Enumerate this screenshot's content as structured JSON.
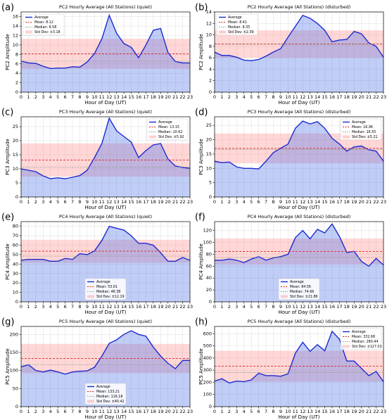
{
  "chart_data": [
    {
      "type": "line",
      "panel_label": "(a)",
      "title": "PC2 Hourly Average (All Stations) (quiet)",
      "xlabel": "Hour of Day (UT)",
      "ylabel": "PC2 Amplitude",
      "x": [
        0,
        1,
        2,
        3,
        4,
        5,
        6,
        7,
        8,
        9,
        10,
        11,
        12,
        13,
        14,
        15,
        16,
        17,
        18,
        19,
        20,
        21,
        22,
        23
      ],
      "xlim": [
        0,
        23
      ],
      "xticks": [
        0,
        1,
        2,
        3,
        4,
        5,
        6,
        7,
        8,
        9,
        10,
        11,
        12,
        13,
        14,
        15,
        16,
        17,
        18,
        19,
        20,
        21,
        22,
        23
      ],
      "ylim": [
        0,
        17
      ],
      "yticks": [
        0,
        2,
        4,
        6,
        8,
        10,
        12,
        14,
        16
      ],
      "series": [
        {
          "name": "Average",
          "color": "#1a2bd1",
          "values": [
            6.6,
            6.2,
            6.1,
            5.5,
            5.0,
            5.1,
            5.1,
            5.4,
            5.3,
            6.4,
            8.2,
            11.3,
            16.3,
            12.5,
            10.3,
            9.5,
            7.3,
            10.0,
            13.1,
            13.5,
            8.4,
            6.5,
            6.2,
            6.2
          ]
        }
      ],
      "mean": {
        "label": "Mean: 8.12",
        "value": 8.12,
        "color": "#d62728"
      },
      "median": {
        "label": "Median: 6.58",
        "value": 6.58,
        "color": "#8a9a8a"
      },
      "std_dev": {
        "label": "Std Dev: ±3.18",
        "value": 3.18,
        "color": "#ff8c8c"
      },
      "legend": "upper left",
      "grid": true
    },
    {
      "type": "line",
      "panel_label": "(b)",
      "title": "PC2 Hourly Average (All Stations) (disturbed)",
      "xlabel": "Hour of Day (UT)",
      "ylabel": "PC2 Amplitude",
      "x": [
        0,
        1,
        2,
        3,
        4,
        5,
        6,
        7,
        8,
        9,
        10,
        11,
        12,
        13,
        14,
        15,
        16,
        17,
        18,
        19,
        20,
        21,
        22,
        23
      ],
      "xlim": [
        0,
        23
      ],
      "xticks": [
        0,
        1,
        2,
        3,
        4,
        5,
        6,
        7,
        8,
        9,
        10,
        11,
        12,
        13,
        14,
        15,
        16,
        17,
        18,
        19,
        20,
        21,
        22,
        23
      ],
      "ylim": [
        0,
        14
      ],
      "yticks": [
        0,
        2,
        4,
        6,
        8,
        10,
        12,
        14
      ],
      "series": [
        {
          "name": "Average",
          "color": "#1a2bd1",
          "values": [
            7.0,
            6.4,
            6.4,
            6.1,
            5.6,
            5.5,
            5.7,
            6.3,
            7.0,
            7.6,
            9.6,
            11.5,
            13.4,
            12.9,
            12.0,
            10.8,
            8.8,
            9.1,
            9.2,
            10.6,
            10.2,
            8.6,
            8.0,
            6.1
          ]
        }
      ],
      "mean": {
        "label": "Mean: 8.41",
        "value": 8.41,
        "color": "#d62728"
      },
      "median": {
        "label": "Median: 8.35",
        "value": 8.35,
        "color": "#8a9a8a"
      },
      "std_dev": {
        "label": "Std Dev: ±2.39",
        "value": 2.39,
        "color": "#ff8c8c"
      },
      "legend": "upper left",
      "grid": true
    },
    {
      "type": "line",
      "panel_label": "(c)",
      "title": "PC3 Hourly Average (All Stations) (quiet)",
      "xlabel": "Hour of Day (UT)",
      "ylabel": "PC3 Amplitude",
      "x": [
        0,
        1,
        2,
        3,
        4,
        5,
        6,
        7,
        8,
        9,
        10,
        11,
        12,
        13,
        14,
        15,
        16,
        17,
        18,
        19,
        20,
        21,
        22,
        23
      ],
      "xlim": [
        0,
        23
      ],
      "xticks": [
        0,
        1,
        2,
        3,
        4,
        5,
        6,
        7,
        8,
        9,
        10,
        11,
        12,
        13,
        14,
        15,
        16,
        17,
        18,
        19,
        20,
        21,
        22,
        23
      ],
      "ylim": [
        0,
        28.5
      ],
      "yticks": [
        0,
        5,
        10,
        15,
        20,
        25
      ],
      "series": [
        {
          "name": "Average",
          "color": "#1a2bd1",
          "values": [
            10.0,
            9.5,
            9.0,
            7.5,
            6.5,
            6.8,
            6.5,
            7.0,
            7.6,
            9.5,
            14.0,
            19.0,
            28.0,
            23.5,
            21.5,
            19.5,
            14.0,
            16.5,
            18.5,
            19.0,
            13.5,
            11.0,
            10.5,
            10.2
          ]
        }
      ],
      "mean": {
        "label": "Mean: 13.15",
        "value": 13.15,
        "color": "#d62728"
      },
      "median": {
        "label": "Median: 10.62",
        "value": 10.62,
        "color": "#8a9a8a"
      },
      "std_dev": {
        "label": "Std Dev: ±5.92",
        "value": 5.92,
        "color": "#ff8c8c"
      },
      "legend": "upper right",
      "grid": true
    },
    {
      "type": "line",
      "panel_label": "(d)",
      "title": "PC3 Hourly Average (All Stations) (disturbed)",
      "xlabel": "Hour of Day (UT)",
      "ylabel": "PC3 Amplitude",
      "x": [
        0,
        1,
        2,
        3,
        4,
        5,
        6,
        7,
        8,
        9,
        10,
        11,
        12,
        13,
        14,
        15,
        16,
        17,
        18,
        19,
        20,
        21,
        22,
        23
      ],
      "xlim": [
        0,
        23
      ],
      "xticks": [
        0,
        1,
        2,
        3,
        4,
        5,
        6,
        7,
        8,
        9,
        10,
        11,
        12,
        13,
        14,
        15,
        16,
        17,
        18,
        19,
        20,
        21,
        22,
        23
      ],
      "ylim": [
        0,
        28
      ],
      "yticks": [
        0,
        5,
        10,
        15,
        20,
        25
      ],
      "series": [
        {
          "name": "Average",
          "color": "#1a2bd1",
          "values": [
            12.5,
            12.0,
            12.2,
            10.5,
            10.0,
            10.0,
            9.8,
            12.5,
            15.5,
            17.0,
            18.5,
            24.0,
            26.5,
            25.5,
            26.3,
            24.0,
            20.5,
            18.5,
            16.0,
            17.5,
            17.8,
            16.5,
            16.0,
            12.5
          ]
        }
      ],
      "mean": {
        "label": "Mean: 16.96",
        "value": 16.96,
        "color": "#d62728"
      },
      "median": {
        "label": "Median: 16.55",
        "value": 16.55,
        "color": "#8a9a8a"
      },
      "std_dev": {
        "label": "Std Dev: ±5.21",
        "value": 5.21,
        "color": "#ff8c8c"
      },
      "legend": "upper right",
      "grid": true
    },
    {
      "type": "line",
      "panel_label": "(e)",
      "title": "PC4 Hourly Average (All Stations) (quiet)",
      "xlabel": "Hour of Day (UT)",
      "ylabel": "PC4 Amplitude",
      "x": [
        0,
        1,
        2,
        3,
        4,
        5,
        6,
        7,
        8,
        9,
        10,
        11,
        12,
        13,
        14,
        15,
        16,
        17,
        18,
        19,
        20,
        21,
        22,
        23
      ],
      "xlim": [
        0,
        23
      ],
      "xticks": [
        0,
        1,
        2,
        3,
        4,
        5,
        6,
        7,
        8,
        9,
        10,
        11,
        12,
        13,
        14,
        15,
        16,
        17,
        18,
        19,
        20,
        21,
        22,
        23
      ],
      "ylim": [
        0,
        85
      ],
      "yticks": [
        0,
        10,
        20,
        30,
        40,
        50,
        60,
        70,
        80
      ],
      "series": [
        {
          "name": "Average",
          "color": "#1a2bd1",
          "values": [
            44,
            45,
            45,
            45,
            43,
            43,
            46,
            45,
            51,
            50,
            54,
            65,
            80,
            78,
            76,
            70,
            62,
            62,
            60,
            52,
            43,
            43,
            47,
            44
          ]
        }
      ],
      "mean": {
        "label": "Mean: 53.61",
        "value": 53.61,
        "color": "#d62728"
      },
      "median": {
        "label": "Median: 48.38",
        "value": 48.38,
        "color": "#8a9a8a"
      },
      "std_dev": {
        "label": "Std Dev: ±12.19",
        "value": 12.19,
        "color": "#ff8c8c"
      },
      "legend": "lower center",
      "grid": true
    },
    {
      "type": "line",
      "panel_label": "(f)",
      "title": "PC4 Hourly Average (All Stations) (disturbed)",
      "xlabel": "Hour of Day (UT)",
      "ylabel": "PC4 Amplitude",
      "x": [
        0,
        1,
        2,
        3,
        4,
        5,
        6,
        7,
        8,
        9,
        10,
        11,
        12,
        13,
        14,
        15,
        16,
        17,
        18,
        19,
        20,
        21,
        22,
        23
      ],
      "xlim": [
        0,
        23
      ],
      "xticks": [
        0,
        1,
        2,
        3,
        4,
        5,
        6,
        7,
        8,
        9,
        10,
        11,
        12,
        13,
        14,
        15,
        16,
        17,
        18,
        19,
        20,
        21,
        22,
        23
      ],
      "ylim": [
        0,
        135
      ],
      "yticks": [
        0,
        20,
        40,
        60,
        80,
        100,
        120
      ],
      "series": [
        {
          "name": "Average",
          "color": "#1a2bd1",
          "values": [
            70,
            70,
            72,
            70,
            66,
            72,
            76,
            70,
            74,
            76,
            80,
            108,
            120,
            106,
            122,
            116,
            131,
            110,
            83,
            85,
            68,
            60,
            73,
            62
          ]
        }
      ],
      "mean": {
        "label": "Mean: 84.56",
        "value": 84.56,
        "color": "#d62728"
      },
      "median": {
        "label": "Median: 74.66",
        "value": 74.66,
        "color": "#8a9a8a"
      },
      "std_dev": {
        "label": "Std Dev: ±21.86",
        "value": 21.86,
        "color": "#ff8c8c"
      },
      "legend": "lower center",
      "grid": true
    },
    {
      "type": "line",
      "panel_label": "(g)",
      "title": "PC5 Hourly Average (All Stations) (quiet)",
      "xlabel": "Hour of Day (UT)",
      "ylabel": "PC5 Amplitude",
      "x": [
        0,
        1,
        2,
        3,
        4,
        5,
        6,
        7,
        8,
        9,
        10,
        11,
        12,
        13,
        14,
        15,
        16,
        17,
        18,
        19,
        20,
        21,
        22,
        23
      ],
      "xlim": [
        0,
        23
      ],
      "xticks": [
        0,
        1,
        2,
        3,
        4,
        5,
        6,
        7,
        8,
        9,
        10,
        11,
        12,
        13,
        14,
        15,
        16,
        17,
        18,
        19,
        20,
        21,
        22,
        23
      ],
      "ylim": [
        0,
        222
      ],
      "yticks": [
        0,
        50,
        100,
        150,
        200
      ],
      "series": [
        {
          "name": "Average",
          "color": "#1a2bd1",
          "values": [
            110,
            116,
            100,
            96,
            101,
            96,
            90,
            96,
            98,
            99,
            109,
            140,
            175,
            185,
            200,
            210,
            200,
            195,
            165,
            140,
            120,
            105,
            128,
            128
          ]
        }
      ],
      "mean": {
        "label": "Mean: 133.21",
        "value": 133.21,
        "color": "#d62728"
      },
      "median": {
        "label": "Median: 116.18",
        "value": 116.18,
        "color": "#8a9a8a"
      },
      "std_dev": {
        "label": "Std Dev: ±40.42",
        "value": 40.42,
        "color": "#ff8c8c"
      },
      "legend": "lower center",
      "grid": true
    },
    {
      "type": "line",
      "panel_label": "(h)",
      "title": "PC5 Hourly Average (All Stations) (disturbed)",
      "xlabel": "Hour of Day (UT)",
      "ylabel": "PC5 Amplitude",
      "x": [
        0,
        1,
        2,
        3,
        4,
        5,
        6,
        7,
        8,
        9,
        10,
        11,
        12,
        13,
        14,
        15,
        16,
        17,
        18,
        19,
        20,
        21,
        22,
        23
      ],
      "xlim": [
        0,
        23
      ],
      "xticks": [
        0,
        1,
        2,
        3,
        4,
        5,
        6,
        7,
        8,
        9,
        10,
        11,
        12,
        13,
        14,
        15,
        16,
        17,
        18,
        19,
        20,
        21,
        22,
        23
      ],
      "ylim": [
        0,
        660
      ],
      "yticks": [
        0,
        100,
        200,
        300,
        400,
        500,
        600
      ],
      "series": [
        {
          "name": "Average",
          "color": "#1a2bd1",
          "values": [
            210,
            230,
            195,
            210,
            205,
            220,
            275,
            255,
            255,
            250,
            270,
            440,
            530,
            455,
            510,
            460,
            620,
            555,
            375,
            375,
            315,
            255,
            290,
            205
          ]
        }
      ],
      "mean": {
        "label": "Mean: 332.68",
        "value": 332.68,
        "color": "#d62728"
      },
      "median": {
        "label": "Median: 280.44",
        "value": 280.44,
        "color": "#8a9a8a"
      },
      "std_dev": {
        "label": "Std Dev: ±127.01",
        "value": 127.01,
        "color": "#ff8c8c"
      },
      "legend": "upper right",
      "grid": true
    }
  ]
}
